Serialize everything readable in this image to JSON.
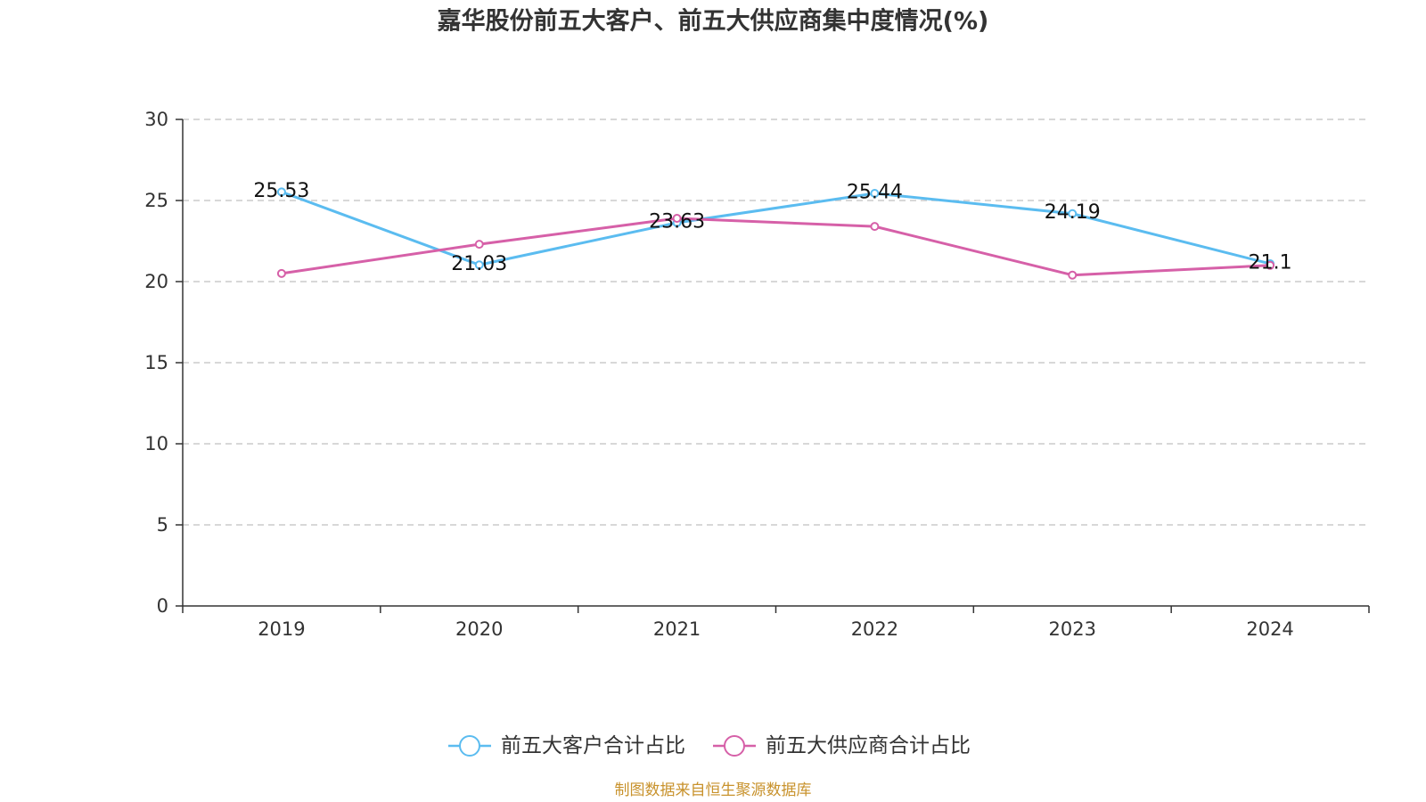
{
  "footer": "制图数据来自恒生聚源数据库",
  "colors": {
    "footer": "#c8922c",
    "axis": "#333333",
    "grid": "#cccccc"
  },
  "chart_data": {
    "type": "line",
    "title": "嘉华股份前五大客户、前五大供应商集中度情况(%)",
    "categories": [
      "2019",
      "2020",
      "2021",
      "2022",
      "2023",
      "2024"
    ],
    "ylim": [
      0,
      30
    ],
    "yticks": [
      0,
      5,
      10,
      15,
      20,
      25,
      30
    ],
    "grid": true,
    "legend_position": "bottom",
    "series": [
      {
        "name": "前五大客户合计占比",
        "color": "#5bbcf0",
        "values": [
          25.53,
          21.03,
          23.63,
          25.44,
          24.19,
          21.1
        ],
        "show_labels": true
      },
      {
        "name": "前五大供应商合计占比",
        "color": "#d660a8",
        "values": [
          20.5,
          22.3,
          23.9,
          23.4,
          20.4,
          21.0
        ],
        "show_labels": false
      }
    ]
  }
}
